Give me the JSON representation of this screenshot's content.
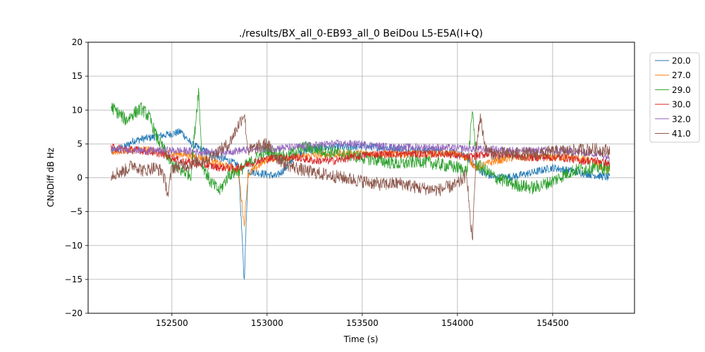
{
  "chart_data": {
    "type": "line",
    "title": "./results/BX_all_0-EB93_all_0 BeiDou L5-E5A(I+Q)",
    "xlabel": "Time (s)",
    "ylabel": "CNoDiff dB Hz",
    "xlim": [
      152060,
      154930
    ],
    "ylim": [
      -20,
      20
    ],
    "xticks": [
      152500,
      153000,
      153500,
      154000,
      154500
    ],
    "yticks": [
      -20,
      -15,
      -10,
      -5,
      0,
      5,
      10,
      15,
      20
    ],
    "xtick_labels": [
      "152500",
      "153000",
      "153500",
      "154000",
      "154500"
    ],
    "ytick_labels": [
      "−20",
      "−15",
      "−10",
      "−5",
      "0",
      "5",
      "10",
      "15",
      "20"
    ],
    "grid": true,
    "legend_position": "outside-right-top",
    "series": [
      {
        "name": "20.0",
        "color": "#1f77b4",
        "points": [
          [
            152180,
            4.0
          ],
          [
            152250,
            4.5
          ],
          [
            152300,
            5.5
          ],
          [
            152400,
            6.0
          ],
          [
            152500,
            6.5
          ],
          [
            152550,
            6.8
          ],
          [
            152600,
            5.0
          ],
          [
            152700,
            3.5
          ],
          [
            152800,
            2.5
          ],
          [
            152850,
            1.8
          ],
          [
            152880,
            -15.3
          ],
          [
            152900,
            1.0
          ],
          [
            153000,
            0.5
          ],
          [
            153050,
            0.2
          ],
          [
            153100,
            1.5
          ],
          [
            153150,
            3.5
          ],
          [
            153200,
            4.0
          ],
          [
            153300,
            4.5
          ],
          [
            153400,
            4.5
          ],
          [
            153500,
            4.6
          ],
          [
            153600,
            4.5
          ],
          [
            153700,
            4.3
          ],
          [
            153800,
            4.0
          ],
          [
            153900,
            4.0
          ],
          [
            154000,
            3.5
          ],
          [
            154050,
            3.0
          ],
          [
            154100,
            1.5
          ],
          [
            154150,
            0.5
          ],
          [
            154200,
            0.0
          ],
          [
            154300,
            0.2
          ],
          [
            154400,
            0.8
          ],
          [
            154500,
            1.5
          ],
          [
            154600,
            1.0
          ],
          [
            154700,
            0.5
          ],
          [
            154800,
            0.0
          ]
        ]
      },
      {
        "name": "27.0",
        "color": "#ff7f0e",
        "points": [
          [
            152180,
            3.8
          ],
          [
            152250,
            4.0
          ],
          [
            152350,
            4.2
          ],
          [
            152450,
            3.8
          ],
          [
            152550,
            3.5
          ],
          [
            152650,
            3.0
          ],
          [
            152700,
            2.5
          ],
          [
            152750,
            2.0
          ],
          [
            152800,
            1.5
          ],
          [
            152850,
            1.0
          ],
          [
            152880,
            -7.0
          ],
          [
            152900,
            0.5
          ],
          [
            153000,
            2.8
          ],
          [
            153100,
            3.0
          ],
          [
            153200,
            3.2
          ],
          [
            153300,
            3.4
          ],
          [
            153400,
            3.5
          ],
          [
            153500,
            3.6
          ],
          [
            153600,
            3.5
          ],
          [
            153700,
            3.5
          ],
          [
            153800,
            3.6
          ],
          [
            153900,
            3.6
          ],
          [
            154000,
            3.5
          ],
          [
            154050,
            3.0
          ],
          [
            154100,
            1.5
          ],
          [
            154150,
            2.0
          ],
          [
            154200,
            2.5
          ],
          [
            154300,
            3.0
          ],
          [
            154400,
            3.0
          ],
          [
            154500,
            3.0
          ],
          [
            154600,
            3.0
          ],
          [
            154700,
            2.5
          ],
          [
            154800,
            1.0
          ]
        ]
      },
      {
        "name": "29.0",
        "color": "#2ca02c",
        "points": [
          [
            152180,
            10.5
          ],
          [
            152220,
            9.5
          ],
          [
            152260,
            8.5
          ],
          [
            152300,
            9.5
          ],
          [
            152340,
            10.2
          ],
          [
            152380,
            9.0
          ],
          [
            152420,
            6.0
          ],
          [
            152460,
            4.0
          ],
          [
            152500,
            2.0
          ],
          [
            152550,
            1.0
          ],
          [
            152600,
            0.5
          ],
          [
            152640,
            13.0
          ],
          [
            152660,
            2.0
          ],
          [
            152700,
            -0.5
          ],
          [
            152750,
            -2.0
          ],
          [
            152800,
            0.5
          ],
          [
            152850,
            1.0
          ],
          [
            152900,
            2.0
          ],
          [
            152950,
            3.0
          ],
          [
            153000,
            4.0
          ],
          [
            153050,
            3.5
          ],
          [
            153100,
            3.0
          ],
          [
            153150,
            4.0
          ],
          [
            153200,
            4.5
          ],
          [
            153300,
            4.0
          ],
          [
            153400,
            3.5
          ],
          [
            153500,
            3.0
          ],
          [
            153600,
            2.5
          ],
          [
            153700,
            2.0
          ],
          [
            153800,
            2.5
          ],
          [
            153900,
            2.0
          ],
          [
            154000,
            1.5
          ],
          [
            154050,
            1.0
          ],
          [
            154080,
            10.0
          ],
          [
            154100,
            2.0
          ],
          [
            154150,
            1.0
          ],
          [
            154200,
            0.0
          ],
          [
            154300,
            -1.0
          ],
          [
            154400,
            -1.5
          ],
          [
            154500,
            -0.5
          ],
          [
            154600,
            1.0
          ],
          [
            154700,
            1.5
          ],
          [
            154800,
            1.5
          ]
        ]
      },
      {
        "name": "30.0",
        "color": "#d62728",
        "points": [
          [
            152180,
            4.5
          ],
          [
            152250,
            4.2
          ],
          [
            152350,
            4.0
          ],
          [
            152450,
            3.5
          ],
          [
            152550,
            2.5
          ],
          [
            152650,
            2.0
          ],
          [
            152750,
            1.5
          ],
          [
            152850,
            1.5
          ],
          [
            152950,
            2.5
          ],
          [
            153050,
            3.0
          ],
          [
            153150,
            3.0
          ],
          [
            153250,
            2.5
          ],
          [
            153350,
            2.5
          ],
          [
            153450,
            3.0
          ],
          [
            153550,
            3.5
          ],
          [
            153650,
            3.5
          ],
          [
            153750,
            3.5
          ],
          [
            153850,
            3.5
          ],
          [
            153950,
            3.5
          ],
          [
            154050,
            3.0
          ],
          [
            154150,
            3.5
          ],
          [
            154250,
            3.5
          ],
          [
            154350,
            3.0
          ],
          [
            154450,
            3.0
          ],
          [
            154550,
            3.0
          ],
          [
            154650,
            2.5
          ],
          [
            154750,
            2.5
          ],
          [
            154800,
            2.0
          ]
        ]
      },
      {
        "name": "32.0",
        "color": "#9467bd",
        "points": [
          [
            152180,
            4.0
          ],
          [
            152250,
            4.2
          ],
          [
            152350,
            4.0
          ],
          [
            152450,
            4.0
          ],
          [
            152550,
            4.0
          ],
          [
            152650,
            3.8
          ],
          [
            152750,
            3.8
          ],
          [
            152850,
            4.0
          ],
          [
            152950,
            4.2
          ],
          [
            153050,
            4.4
          ],
          [
            153150,
            4.5
          ],
          [
            153250,
            4.8
          ],
          [
            153350,
            5.0
          ],
          [
            153450,
            5.0
          ],
          [
            153550,
            4.8
          ],
          [
            153650,
            4.5
          ],
          [
            153750,
            4.5
          ],
          [
            153850,
            4.5
          ],
          [
            153950,
            4.4
          ],
          [
            154050,
            4.3
          ],
          [
            154150,
            4.2
          ],
          [
            154250,
            4.1
          ],
          [
            154350,
            4.0
          ],
          [
            154450,
            4.0
          ],
          [
            154550,
            4.0
          ],
          [
            154650,
            3.8
          ],
          [
            154750,
            3.5
          ],
          [
            154800,
            3.0
          ]
        ]
      },
      {
        "name": "41.0",
        "color": "#8c564b",
        "points": [
          [
            152180,
            0.5
          ],
          [
            152250,
            1.0
          ],
          [
            152300,
            2.0
          ],
          [
            152350,
            1.0
          ],
          [
            152400,
            1.5
          ],
          [
            152450,
            1.0
          ],
          [
            152480,
            -2.5
          ],
          [
            152500,
            1.5
          ],
          [
            152600,
            2.0
          ],
          [
            152700,
            3.0
          ],
          [
            152800,
            5.0
          ],
          [
            152880,
            9.5
          ],
          [
            152900,
            4.0
          ],
          [
            153000,
            5.0
          ],
          [
            153050,
            3.0
          ],
          [
            153100,
            2.0
          ],
          [
            153200,
            1.0
          ],
          [
            153300,
            0.5
          ],
          [
            153400,
            0.0
          ],
          [
            153500,
            -0.5
          ],
          [
            153600,
            -1.0
          ],
          [
            153700,
            -0.8
          ],
          [
            153800,
            -1.5
          ],
          [
            153900,
            -1.8
          ],
          [
            154000,
            -1.0
          ],
          [
            154050,
            0.5
          ],
          [
            154070,
            -7.5
          ],
          [
            154080,
            -8.5
          ],
          [
            154100,
            5.0
          ],
          [
            154120,
            9.0
          ],
          [
            154150,
            4.0
          ],
          [
            154200,
            3.5
          ],
          [
            154300,
            3.5
          ],
          [
            154400,
            3.5
          ],
          [
            154500,
            3.8
          ],
          [
            154600,
            4.0
          ],
          [
            154700,
            4.2
          ],
          [
            154800,
            4.0
          ]
        ]
      }
    ]
  }
}
